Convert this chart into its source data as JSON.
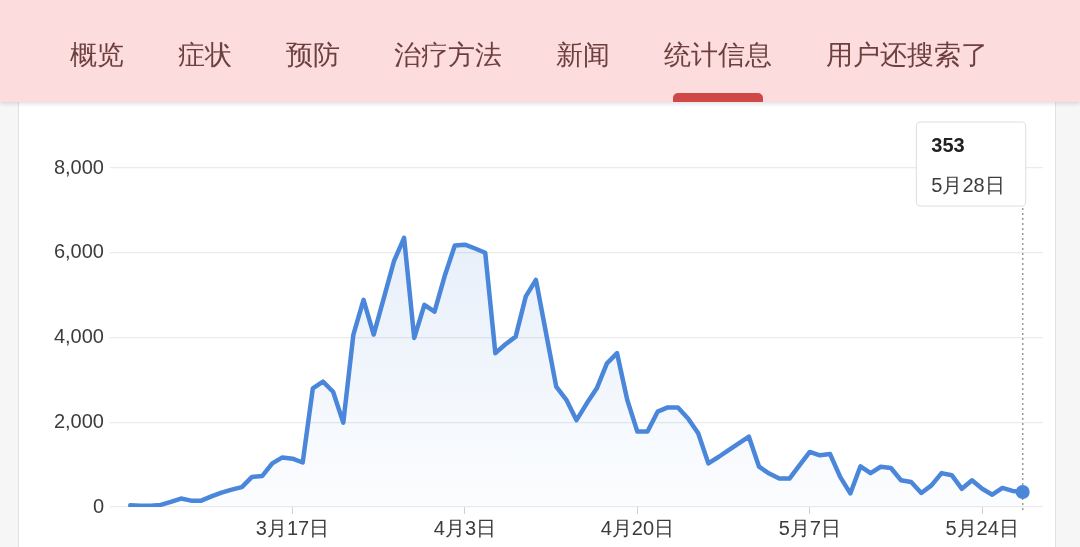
{
  "chart_data": [
    {
      "type": "other",
      "annotations": [
        "概览",
        "症状",
        "预防",
        "治疗方法",
        "新闻",
        "统计信息",
        "用户还搜索了"
      ]
    },
    {
      "type": "area",
      "annotations": [
        "353",
        "5月28日"
      ],
      "x": [
        "--03-01",
        "--03-02",
        "--03-03",
        "--03-04",
        "--03-05",
        "--03-06",
        "--03-07",
        "--03-08",
        "--03-09",
        "--03-10",
        "--03-11",
        "--03-12",
        "--03-13",
        "--03-14",
        "--03-15",
        "--03-16",
        "--03-17",
        "--03-18",
        "--03-19",
        "--03-20",
        "--03-21",
        "--03-22",
        "--03-23",
        "--03-24",
        "--03-25",
        "--03-26",
        "--03-27",
        "--03-28",
        "--03-29",
        "--03-30",
        "--03-31",
        "--04-01",
        "--04-02",
        "--04-03",
        "--04-04",
        "--04-05",
        "--04-06",
        "--04-07",
        "--04-08",
        "--04-09",
        "--04-10",
        "--04-11",
        "--04-12",
        "--04-13",
        "--04-14",
        "--04-15",
        "--04-16",
        "--04-17",
        "--04-18",
        "--04-19",
        "--04-20",
        "--04-21",
        "--04-22",
        "--04-23",
        "--04-24",
        "--04-25",
        "--04-26",
        "--04-27",
        "--04-28",
        "--04-29",
        "--04-30",
        "--05-01",
        "--05-02",
        "--05-03",
        "--05-04",
        "--05-05",
        "--05-06",
        "--05-07",
        "--05-08",
        "--05-09",
        "--05-10",
        "--05-11",
        "--05-12",
        "--05-13",
        "--05-14",
        "--05-15",
        "--05-16",
        "--05-17",
        "--05-18",
        "--05-19",
        "--05-20",
        "--05-21",
        "--05-22",
        "--05-23",
        "--05-24",
        "--05-25",
        "--05-26",
        "--05-27",
        "--05-28"
      ],
      "values": [
        40,
        30,
        30,
        50,
        120,
        200,
        150,
        150,
        250,
        340,
        410,
        470,
        710,
        730,
        1030,
        1170,
        1140,
        1050,
        2800,
        2960,
        2720,
        1990,
        4070,
        4890,
        4070,
        4930,
        5800,
        6350,
        3990,
        4770,
        4610,
        5450,
        6170,
        6190,
        6100,
        6000,
        3630,
        3840,
        4020,
        4970,
        5360,
        4100,
        2840,
        2530,
        2050,
        2440,
        2800,
        3390,
        3630,
        2530,
        1780,
        1780,
        2250,
        2350,
        2350,
        2090,
        1740,
        1030,
        1180,
        1340,
        1500,
        1660,
        950,
        790,
        670,
        670,
        990,
        1300,
        1220,
        1250,
        710,
        320,
        960,
        800,
        950,
        920,
        630,
        590,
        330,
        510,
        800,
        750,
        430,
        630,
        430,
        290,
        450,
        380,
        353
      ],
      "color": "#4a86d9",
      "xlim": [
        "--02-27",
        "--05-30"
      ],
      "xticks": [
        {
          "value": "--03-17",
          "label": "3月17日"
        },
        {
          "value": "--04-03",
          "label": "4月3日"
        },
        {
          "value": "--04-20",
          "label": "4月20日"
        },
        {
          "value": "--05-07",
          "label": "5月7日"
        },
        {
          "value": "--05-24",
          "label": "5月24日"
        }
      ],
      "ylim": [
        0,
        8000
      ],
      "yticks": [
        0,
        {
          "value": 2000,
          "label": "2,000"
        },
        {
          "value": 4000,
          "label": "4,000"
        },
        {
          "value": 6000,
          "label": "6,000"
        },
        {
          "value": 8000,
          "label": "8,000"
        }
      ],
      "grid": "y",
      "ref_lines": [
        {
          "axis": "x",
          "value": "--05-28",
          "color": "#9a9a9a",
          "line_style": "dotted"
        }
      ]
    }
  ]
}
